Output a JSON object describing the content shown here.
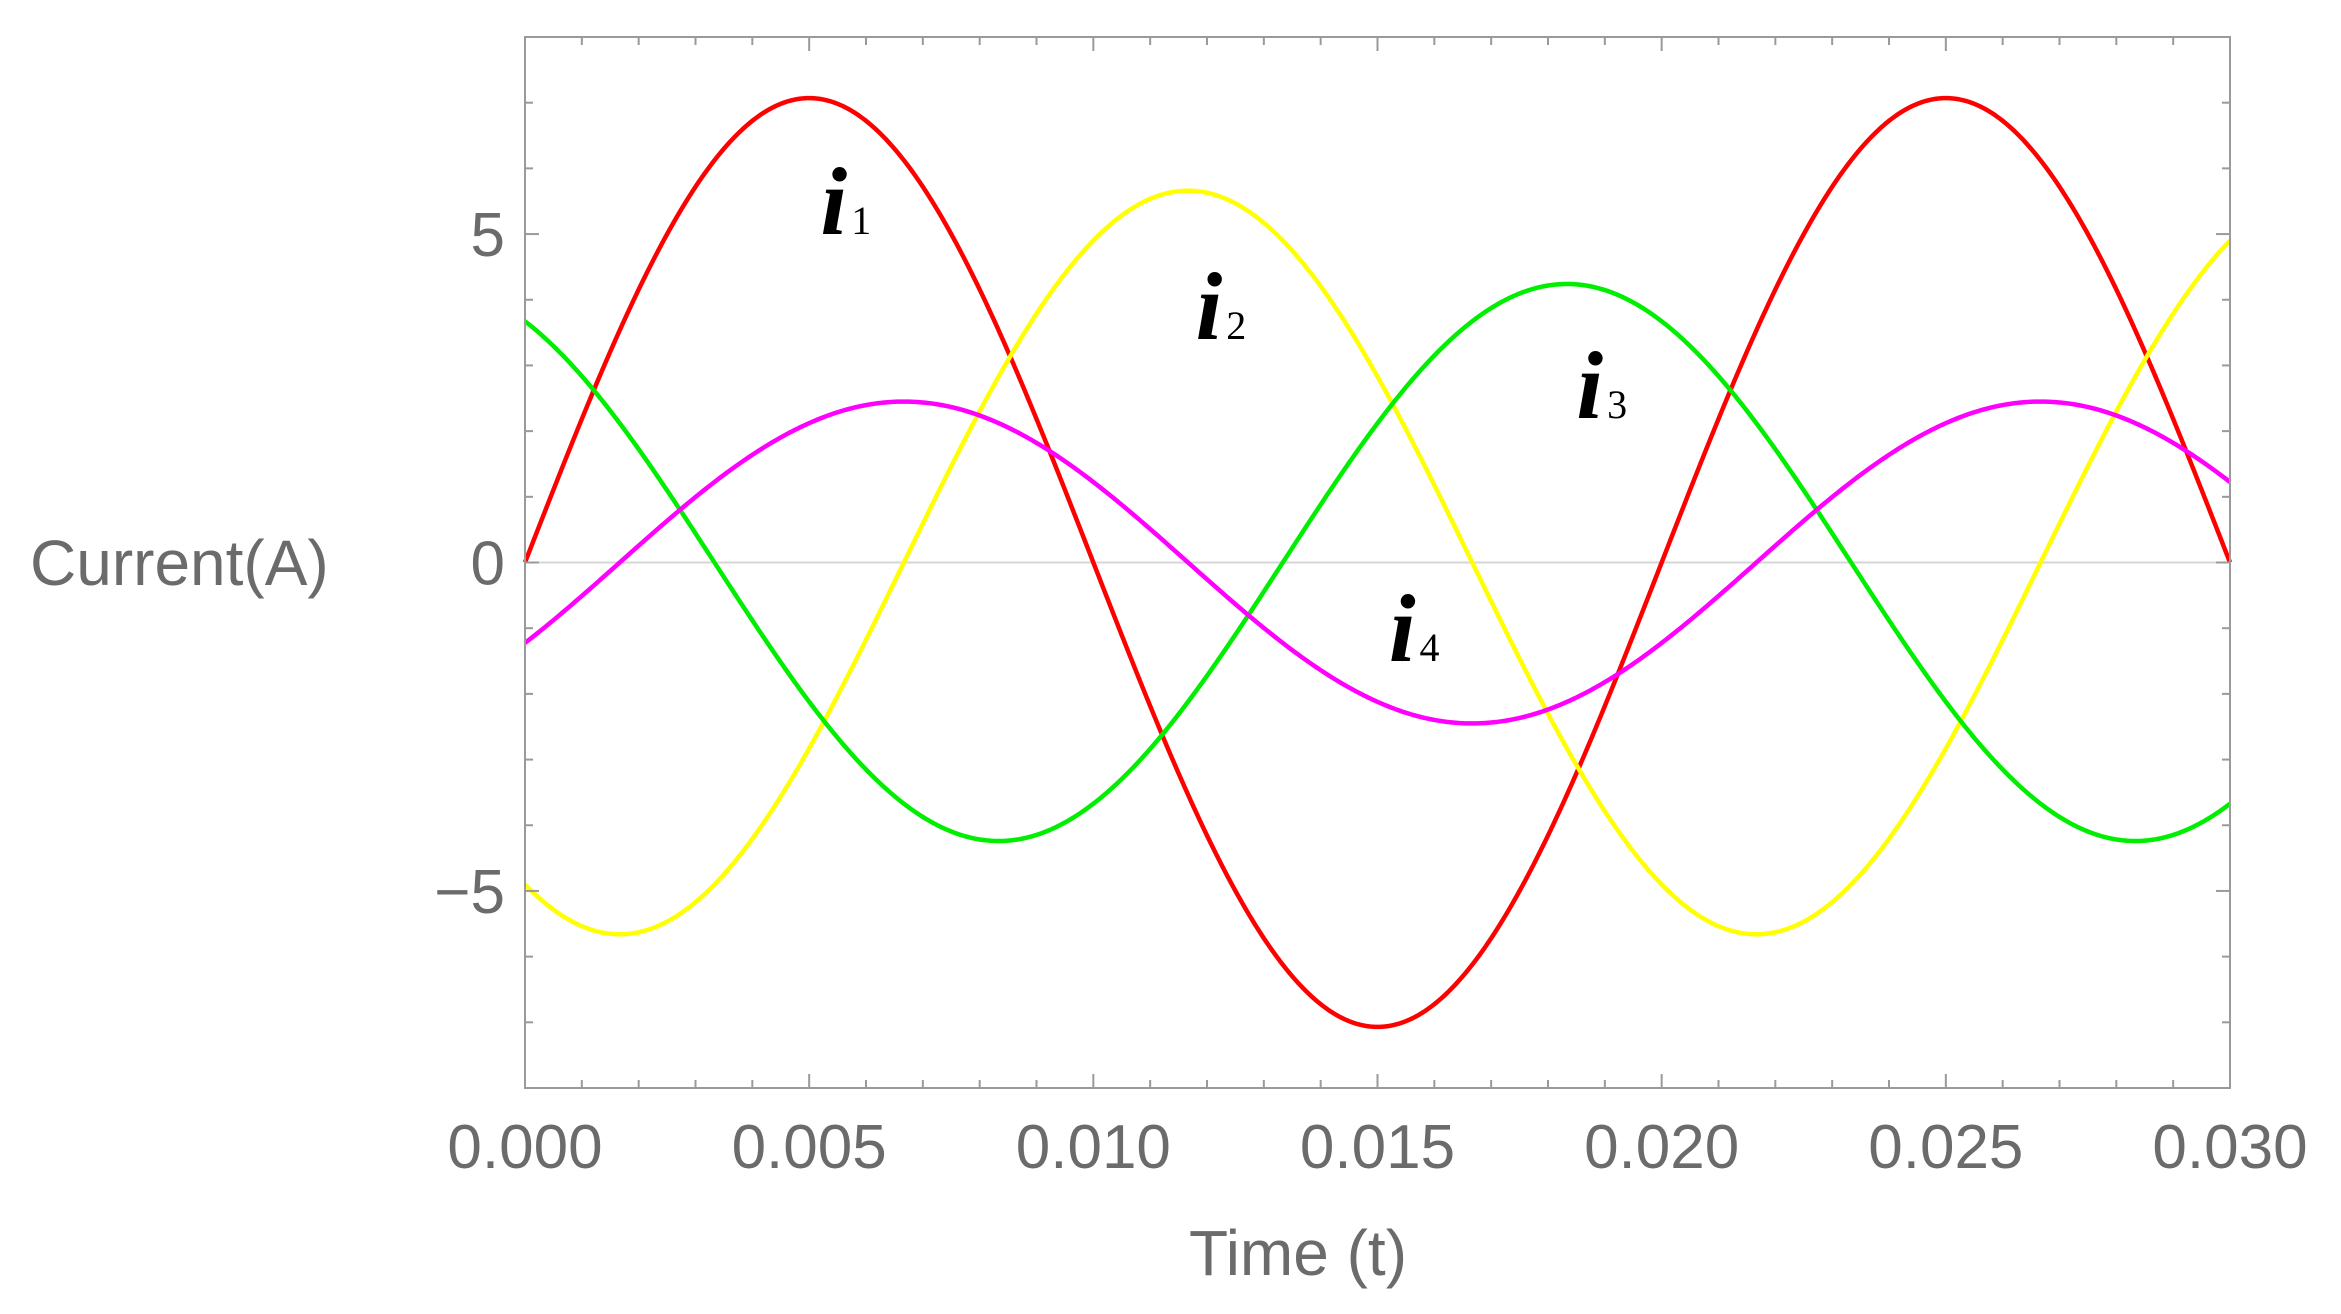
{
  "chart_data": {
    "type": "line",
    "title": "",
    "xlabel": "Time  (t)",
    "ylabel": "Current(A)",
    "xlim": [
      0,
      0.03
    ],
    "ylim": [
      -8,
      8
    ],
    "grid": false,
    "x_ticks": [
      "0.000",
      "0.005",
      "0.010",
      "0.015",
      "0.020",
      "0.025",
      "0.030"
    ],
    "y_ticks": [
      {
        "value": 5,
        "label": "5"
      },
      {
        "value": 0,
        "label": "0"
      },
      {
        "value": -5,
        "label": "−5"
      }
    ],
    "frequency_hz": 50,
    "series": [
      {
        "name": "i1",
        "label_main": "i",
        "label_sub": "1",
        "color": "#ff0000",
        "amplitude": 7.07,
        "phase_deg": 0,
        "label_at": [
          0.0052,
          5.0
        ]
      },
      {
        "name": "i2",
        "label_main": "i",
        "label_sub": "2",
        "color": "#ffff00",
        "amplitude": 5.66,
        "phase_deg": -120,
        "label_at": [
          0.0118,
          3.4
        ]
      },
      {
        "name": "i3",
        "label_main": "i",
        "label_sub": "3",
        "color": "#00ee00",
        "amplitude": 4.24,
        "phase_deg": 120,
        "label_at": [
          0.0185,
          2.2
        ]
      },
      {
        "name": "i4",
        "label_main": "i",
        "label_sub": "4",
        "color": "#ff00ff",
        "amplitude": 2.45,
        "phase_deg": -30,
        "label_at": [
          0.0152,
          -1.5
        ]
      }
    ]
  }
}
